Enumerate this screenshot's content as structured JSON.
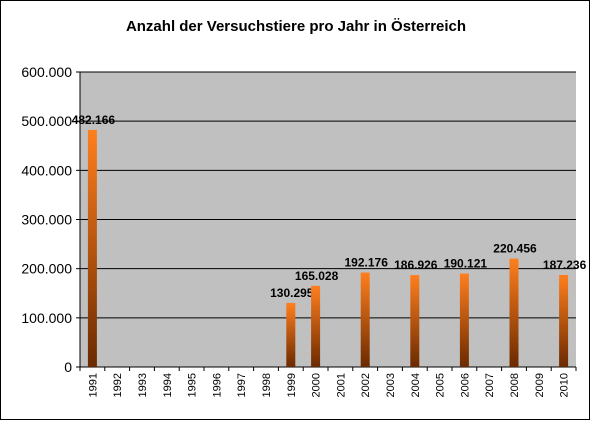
{
  "chart_data": {
    "type": "bar",
    "title": "Anzahl der Versuchstiere pro Jahr in Österreich",
    "xlabel": "",
    "ylabel": "",
    "ylim": [
      0,
      600000
    ],
    "yticks": [
      0,
      100000,
      200000,
      300000,
      400000,
      500000,
      600000
    ],
    "ytick_labels": [
      "0",
      "100.000",
      "200.000",
      "300.000",
      "400.000",
      "500.000",
      "600.000"
    ],
    "categories": [
      "1991",
      "1992",
      "1993",
      "1994",
      "1995",
      "1996",
      "1997",
      "1998",
      "1999",
      "2000",
      "2001",
      "2002",
      "2003",
      "2004",
      "2005",
      "2006",
      "2007",
      "2008",
      "2009",
      "2010"
    ],
    "values": [
      482166,
      null,
      null,
      null,
      null,
      null,
      null,
      null,
      130295,
      165028,
      null,
      192176,
      null,
      186926,
      null,
      190121,
      null,
      220456,
      null,
      187236
    ],
    "data_labels": [
      "482.166",
      "",
      "",
      "",
      "",
      "",
      "",
      "",
      "130.295",
      "165.028",
      "",
      "192.176",
      "",
      "186.926",
      "",
      "190.121",
      "",
      "220.456",
      "",
      "187.236"
    ],
    "grid": true,
    "legend": "none",
    "colors": {
      "plot_background": "#c0c0c0",
      "bar_top": "#ff7f1e",
      "bar_bottom": "#6b2a00",
      "gridline": "#000000"
    }
  }
}
